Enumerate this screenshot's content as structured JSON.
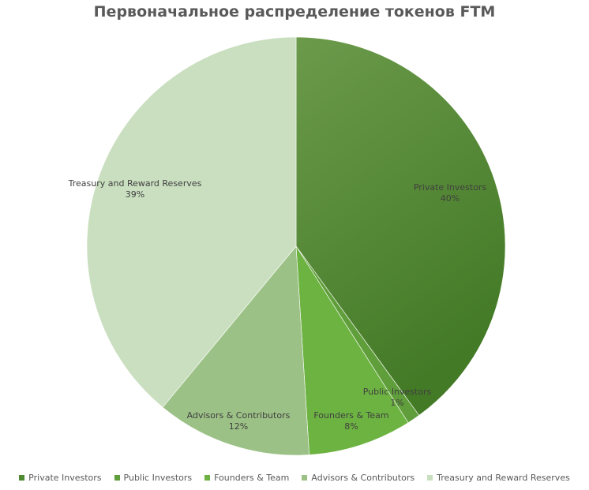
{
  "chart_data": {
    "type": "pie",
    "title": "Первоначальное распределение токенов FTM",
    "slices": [
      {
        "name": "Private Investors",
        "value": 40,
        "label": "40%",
        "color": "#4e8a2f"
      },
      {
        "name": "Public Investors",
        "value": 1,
        "label": "1%",
        "color": "#5f9e3a"
      },
      {
        "name": "Founders & Team",
        "value": 8,
        "label": "8%",
        "color": "#6db342"
      },
      {
        "name": "Advisors & Contributors",
        "value": 12,
        "label": "12%",
        "color": "#9cc186"
      },
      {
        "name": "Treasury and Reward Reserves",
        "value": 39,
        "label": "39%",
        "color": "#c9dfbf"
      }
    ],
    "legend_position": "bottom"
  }
}
